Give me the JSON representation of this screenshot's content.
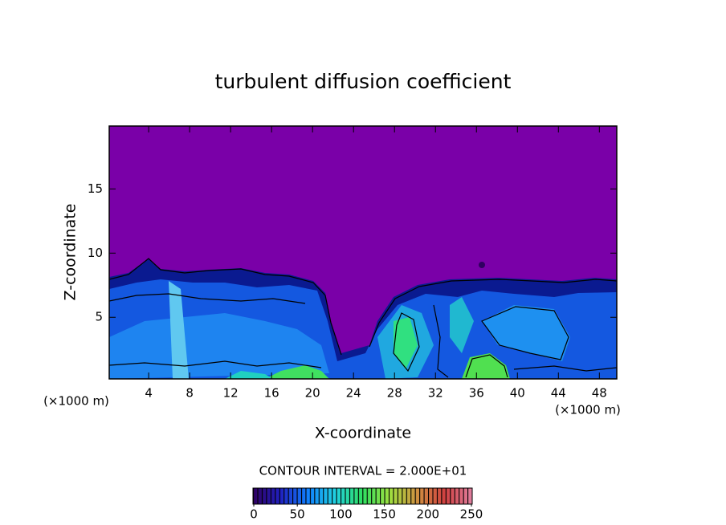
{
  "chart_data": {
    "type": "contour",
    "title": "turbulent diffusion coefficient",
    "xlabel": "X-coordinate",
    "ylabel": "Z-coordinate",
    "x_unit_left": "(×1000 m)",
    "x_unit_right": "(×1000 m)",
    "xlim": [
      0.15,
      49.7
    ],
    "ylim": [
      0.2,
      19.9
    ],
    "xticks": [
      4,
      8,
      12,
      16,
      20,
      24,
      28,
      32,
      36,
      40,
      44,
      48
    ],
    "yticks": [
      5,
      10,
      15
    ],
    "colorbar": {
      "label": "CONTOUR INTERVAL = 2.000E+01",
      "lim": [
        0,
        250
      ],
      "ticks": [
        0,
        50,
        100,
        150,
        200,
        250
      ],
      "colors": [
        "#300060",
        "#2020c0",
        "#1080ff",
        "#20d0e0",
        "#30e060",
        "#a0e040",
        "#d09040",
        "#d04040",
        "#e080a0"
      ]
    }
  }
}
